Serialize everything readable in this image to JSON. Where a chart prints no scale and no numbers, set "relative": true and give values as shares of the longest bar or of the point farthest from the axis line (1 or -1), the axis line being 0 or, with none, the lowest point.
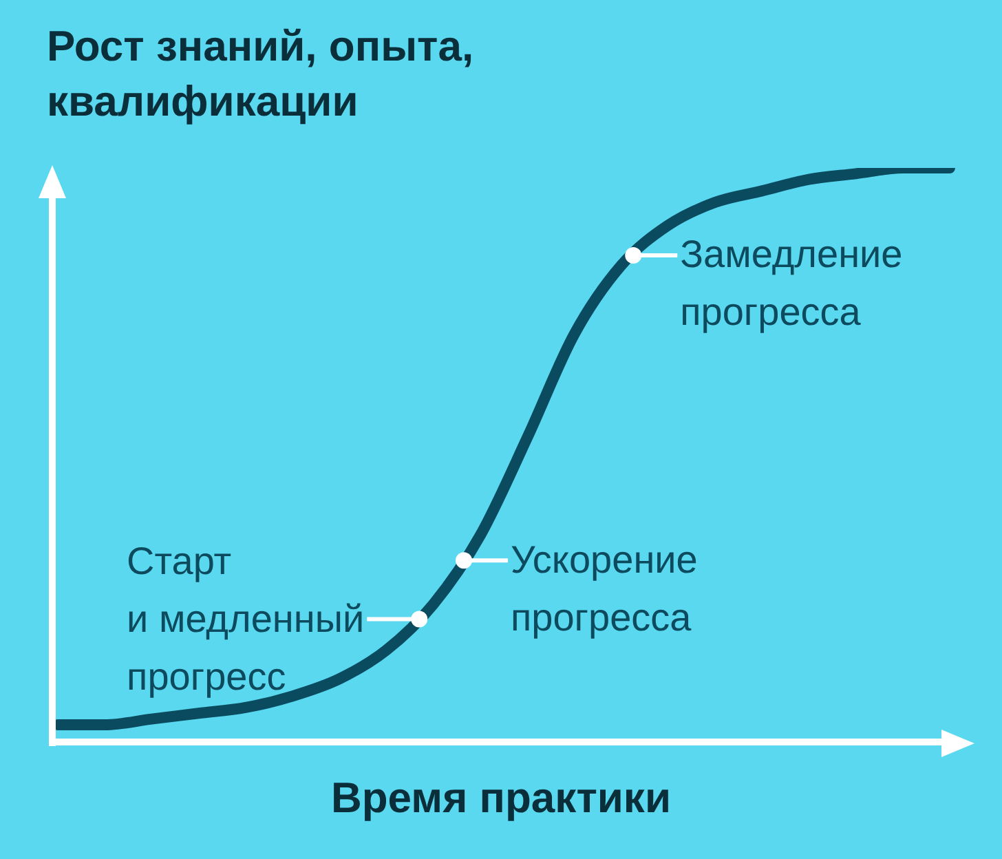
{
  "chart_data": {
    "type": "line",
    "title": "Рост знаний, опыта, квалификации",
    "xlabel": "Время практики",
    "relative": true,
    "marker": "none",
    "categories": [
      null,
      null,
      null,
      null,
      null,
      null,
      null,
      null,
      null,
      null,
      null,
      null,
      null,
      null,
      null,
      null,
      null,
      null,
      null,
      null
    ],
    "series": [
      {
        "color": "#0b4b5f",
        "values": [
          0.03,
          0.03,
          0.04,
          0.05,
          0.06,
          0.08,
          0.11,
          0.16,
          0.24,
          0.36,
          0.53,
          0.71,
          0.83,
          0.9,
          0.94,
          0.96,
          0.98,
          0.99,
          1.0,
          1.0
        ]
      }
    ],
    "annotations": [
      "Старт\nи медленный\nпрогресс",
      "Ускорение\nпрогресса",
      "Замедление\nпрогресса"
    ]
  }
}
